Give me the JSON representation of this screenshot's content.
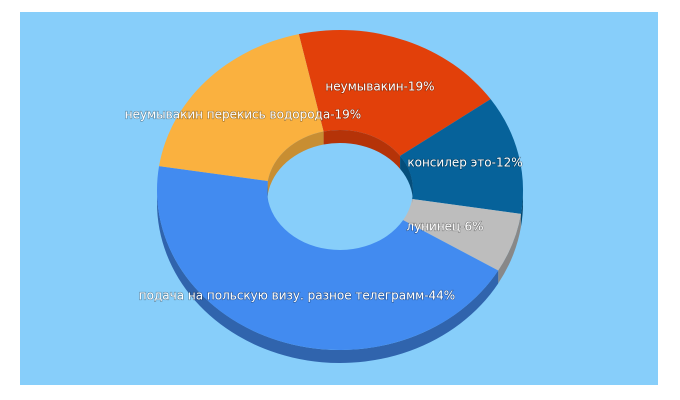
{
  "chart_data": {
    "type": "donut3d",
    "values": [
      19,
      12,
      6,
      44,
      19
    ],
    "value_labels": [
      "неумывакин-19%",
      "консилер это-12%",
      "лунинец-6%",
      "подача на польскую визу. разное телеграмм-44%",
      "неумывакин перекись водорода-19%"
    ],
    "colors": [
      "#e2400a",
      "#06629a",
      "#bdbdbd",
      "#428bf0",
      "#fab13f"
    ]
  }
}
